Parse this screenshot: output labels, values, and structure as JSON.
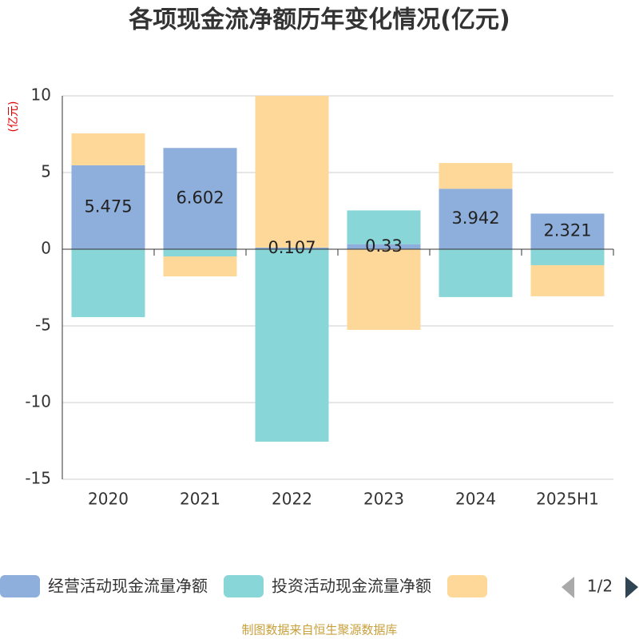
{
  "chart_data": {
    "type": "stacked_bar",
    "title": "各项现金流净额历年变化情况(亿元)",
    "y_axis_label": "(亿元)",
    "categories": [
      "2020",
      "2021",
      "2022",
      "2023",
      "2024",
      "2025H1"
    ],
    "series": [
      {
        "name": "经营活动现金流量净额",
        "color": "#8eaedb",
        "values": [
          5.475,
          6.602,
          0.107,
          0.33,
          3.942,
          2.321
        ],
        "labels": true
      },
      {
        "name": "投资活动现金流量净额",
        "color": "#88d6d8",
        "values": [
          -4.43,
          -0.47,
          -12.55,
          2.2,
          -3.12,
          -1.04
        ]
      },
      {
        "color": "#fed899",
        "values": [
          2.08,
          -1.3,
          9.9,
          -5.26,
          1.68,
          -2.03
        ]
      }
    ],
    "ylim": [
      -15,
      10
    ],
    "yticks": [
      -15,
      -10,
      -5,
      0,
      5,
      10
    ],
    "grid": true,
    "legend_page": "1/2",
    "source": "制图数据来自恒生聚源数据库"
  }
}
